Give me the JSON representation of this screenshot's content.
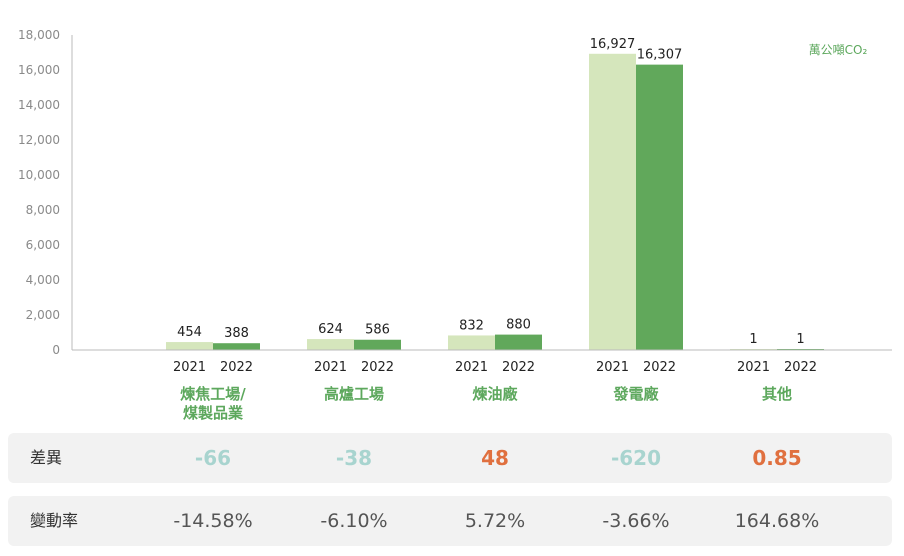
{
  "chart_data": {
    "type": "bar",
    "unit_label": "萬公噸CO₂",
    "categories": [
      {
        "name_lines": [
          "煉焦工場/",
          "煤製品業"
        ]
      },
      {
        "name_lines": [
          "高爐工場"
        ]
      },
      {
        "name_lines": [
          "煉油廠"
        ]
      },
      {
        "name_lines": [
          "發電廠"
        ]
      },
      {
        "name_lines": [
          "其他"
        ]
      }
    ],
    "series": [
      {
        "name": "2021",
        "color": "#d5e6bc",
        "values": [
          454,
          624,
          832,
          16927,
          1
        ]
      },
      {
        "name": "2022",
        "color": "#61a85b",
        "values": [
          388,
          586,
          880,
          16307,
          1
        ]
      }
    ],
    "ylim": [
      0,
      18000
    ],
    "yticks": [
      "0",
      "2,000",
      "4,000",
      "6,000",
      "8,000",
      "10,000",
      "12,000",
      "14,000",
      "16,000",
      "18,000"
    ],
    "value_labels": {
      "2021": [
        "454",
        "624",
        "832",
        "16,927",
        "1"
      ],
      "2022": [
        "388",
        "586",
        "880",
        "16,307",
        "1"
      ]
    },
    "grid": false
  },
  "table": {
    "diff_label": "差異",
    "diff_values": [
      "-66",
      "-38",
      "48",
      "-620",
      "0.85"
    ],
    "diff_colors": [
      "#a8d4cf",
      "#a8d4cf",
      "#e0703f",
      "#a8d4cf",
      "#e0703f"
    ],
    "rate_label": "變動率",
    "rate_values": [
      "-14.58%",
      "-6.10%",
      "5.72%",
      "-3.66%",
      "164.68%"
    ]
  }
}
